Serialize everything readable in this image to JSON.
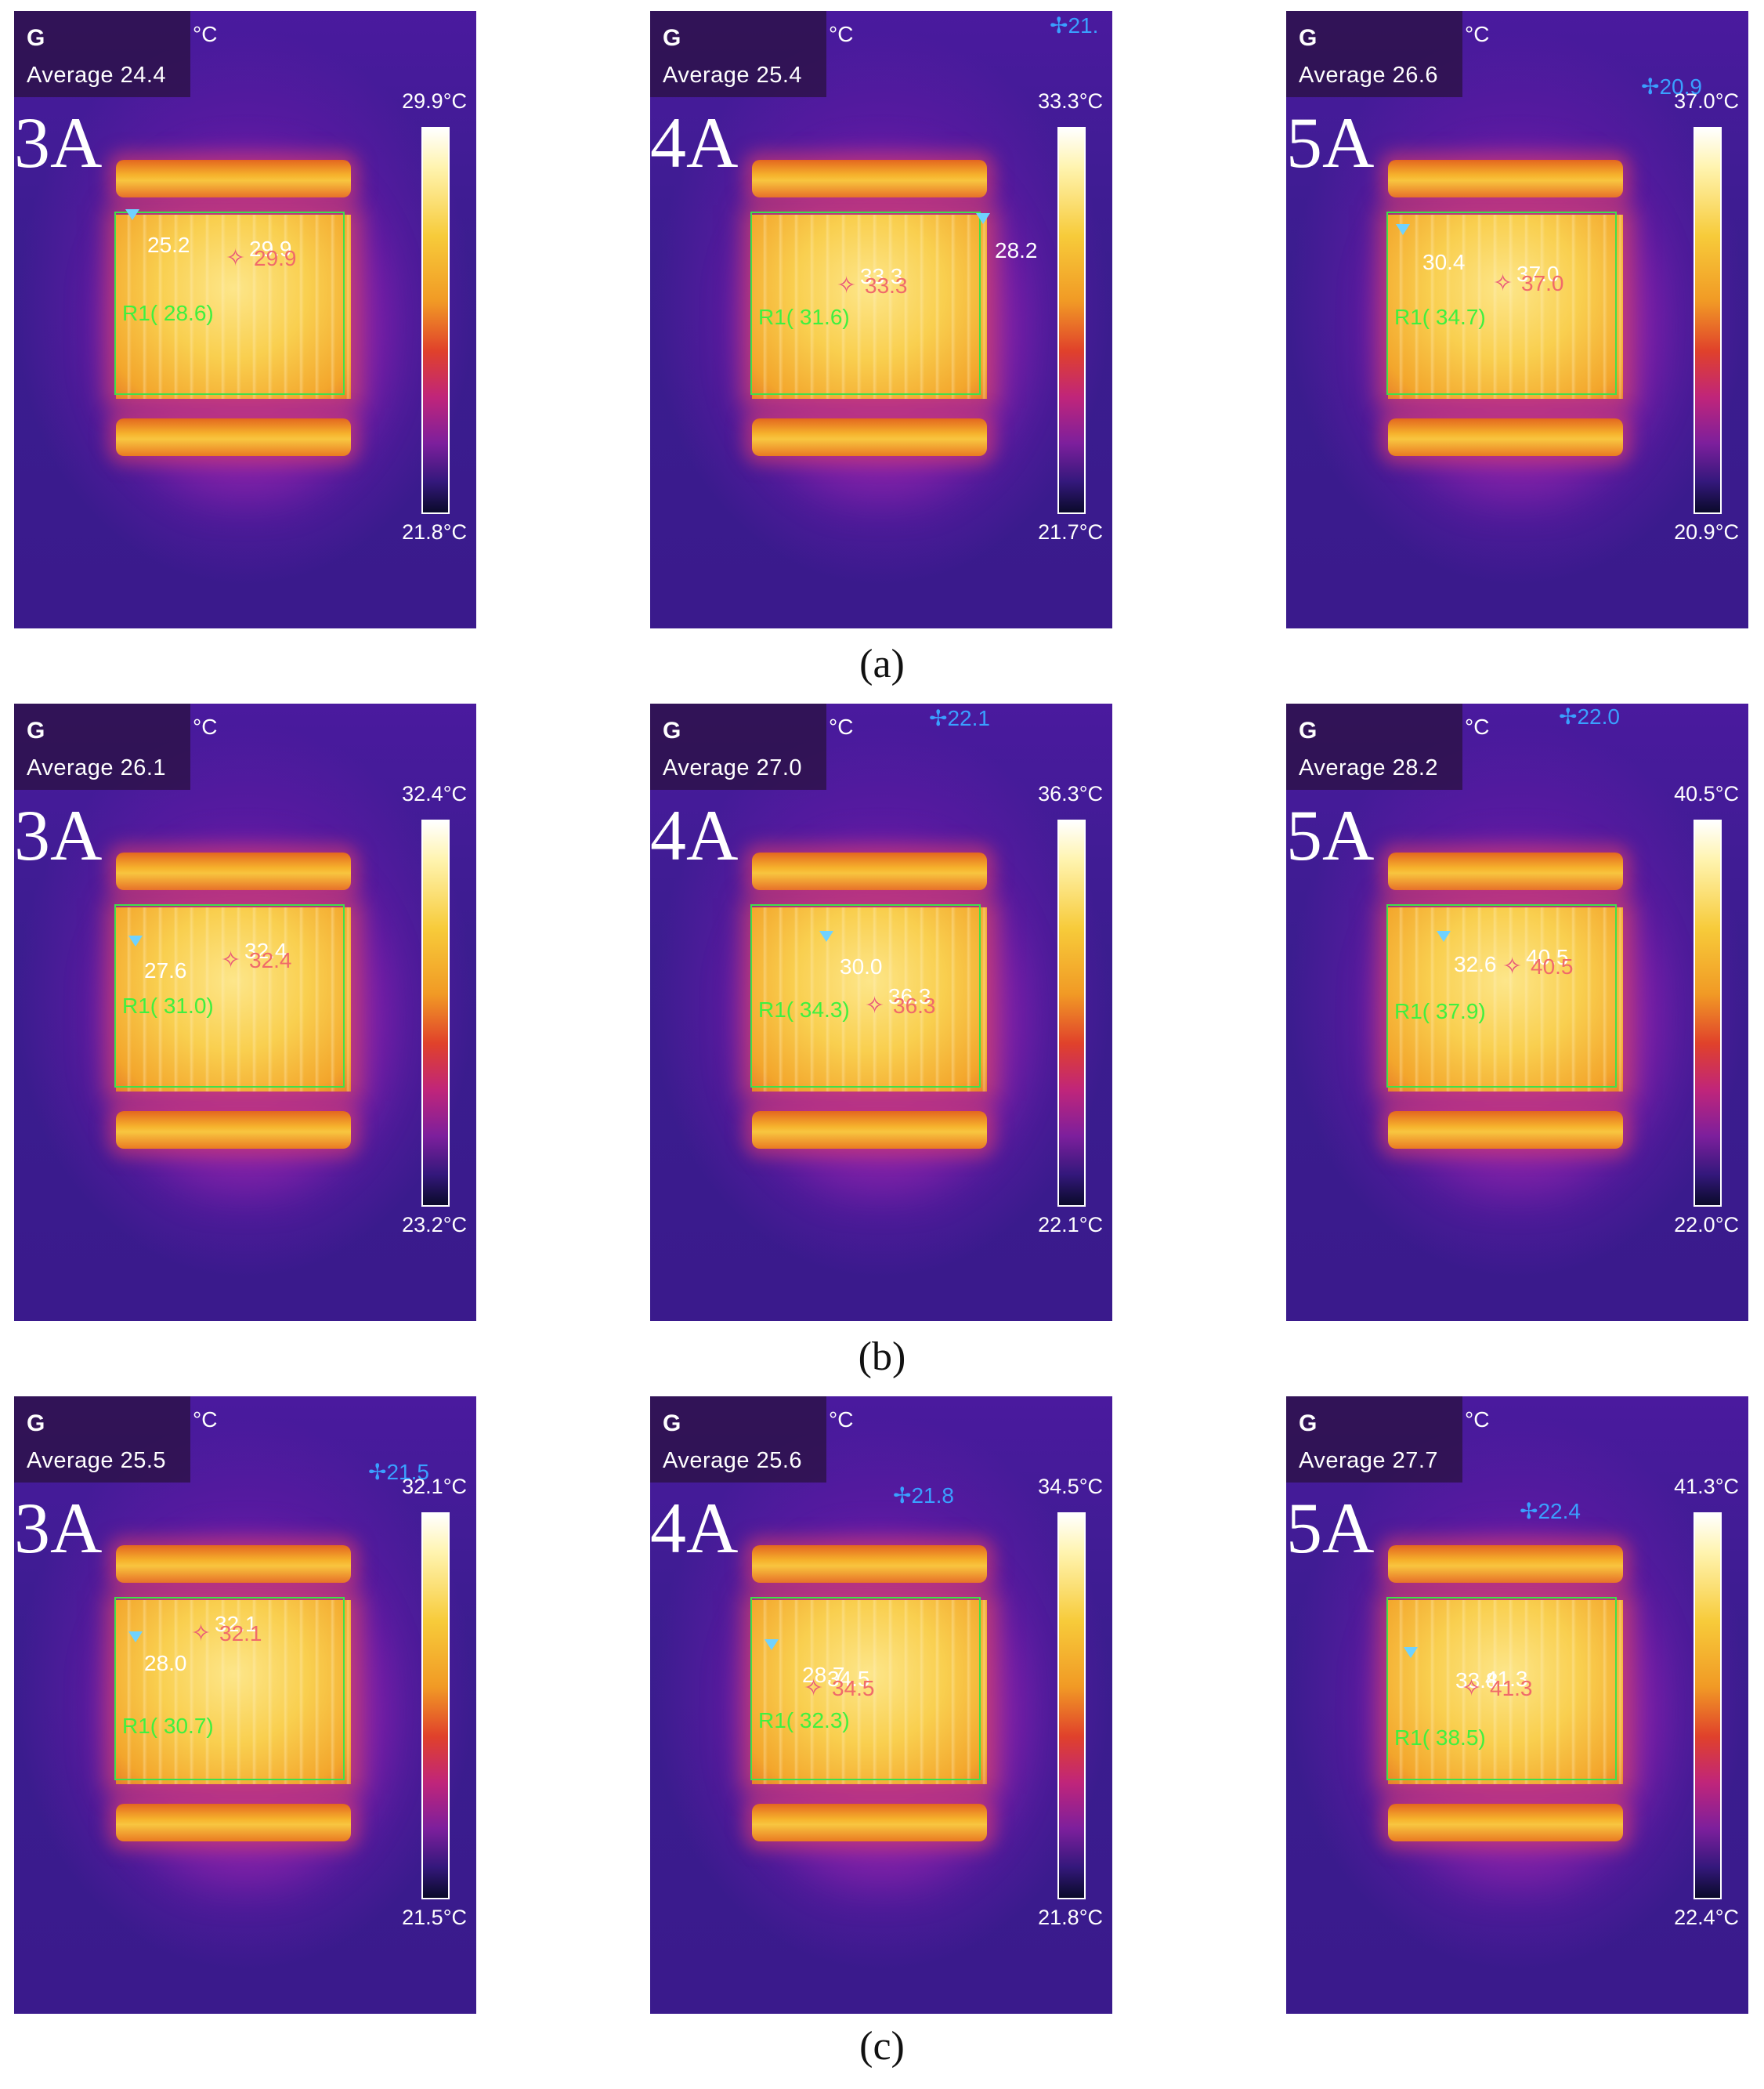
{
  "captions": [
    "(a)",
    "(b)",
    "(c)"
  ],
  "common": {
    "mode_letter": "G",
    "unit": "°C",
    "average_prefix": "Average",
    "roi_prefix": "R1("
  },
  "rows": [
    {
      "panels": [
        {
          "current": "3A",
          "average": "24.4",
          "scale_max": "29.9°C",
          "scale_min": "21.8°C",
          "min_value": "25.2",
          "max_value": "29.9",
          "roi_value": "28.6)",
          "cold_value": ""
        },
        {
          "current": "4A",
          "average": "25.4",
          "scale_max": "33.3°C",
          "scale_min": "21.7°C",
          "min_value": "28.2",
          "max_value": "33.3",
          "roi_value": "31.6)",
          "cold_value": "21."
        },
        {
          "current": "5A",
          "average": "26.6",
          "scale_max": "37.0°C",
          "scale_min": "20.9°C",
          "min_value": "30.4",
          "max_value": "37.0",
          "roi_value": "34.7)",
          "cold_value": "20.9"
        }
      ]
    },
    {
      "panels": [
        {
          "current": "3A",
          "average": "26.1",
          "scale_max": "32.4°C",
          "scale_min": "23.2°C",
          "min_value": "27.6",
          "max_value": "32.4",
          "roi_value": "31.0)",
          "cold_value": ""
        },
        {
          "current": "4A",
          "average": "27.0",
          "scale_max": "36.3°C",
          "scale_min": "22.1°C",
          "min_value": "30.0",
          "max_value": "36.3",
          "roi_value": "34.3)",
          "cold_value": "22.1"
        },
        {
          "current": "5A",
          "average": "28.2",
          "scale_max": "40.5°C",
          "scale_min": "22.0°C",
          "min_value": "32.6",
          "max_value": "40.5",
          "roi_value": "37.9)",
          "cold_value": "22.0"
        }
      ]
    },
    {
      "panels": [
        {
          "current": "3A",
          "average": "25.5",
          "scale_max": "32.1°C",
          "scale_min": "21.5°C",
          "min_value": "28.0",
          "max_value": "32.1",
          "roi_value": "30.7)",
          "cold_value": "21.5"
        },
        {
          "current": "4A",
          "average": "25.6",
          "scale_max": "34.5°C",
          "scale_min": "21.8°C",
          "min_value": "28.7",
          "max_value": "34.5",
          "roi_value": "32.3)",
          "cold_value": "21.8"
        },
        {
          "current": "5A",
          "average": "27.7",
          "scale_max": "41.3°C",
          "scale_min": "22.4°C",
          "min_value": "33.8",
          "max_value": "41.3",
          "roi_value": "38.5)",
          "cold_value": "22.4"
        }
      ]
    }
  ]
}
